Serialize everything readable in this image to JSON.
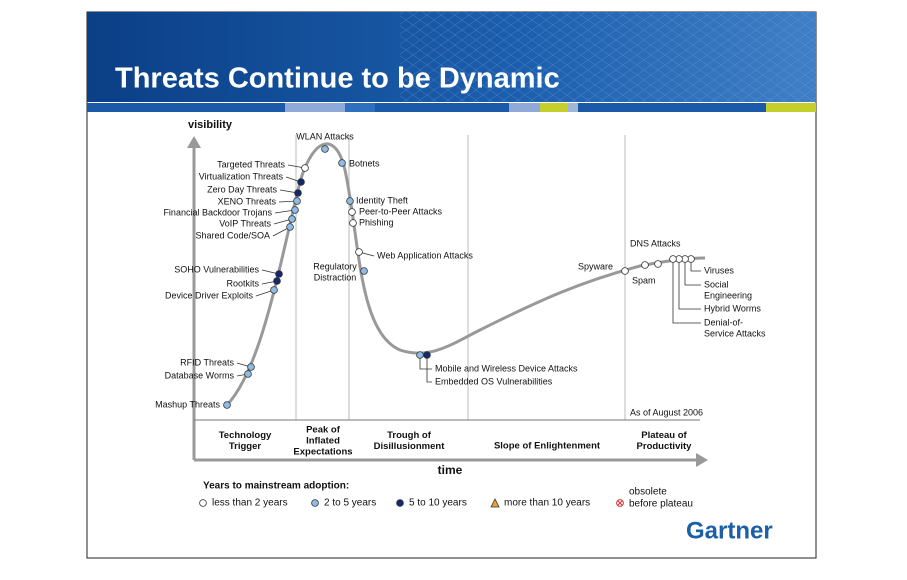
{
  "header": {
    "title": "Threats Continue to be Dynamic"
  },
  "axes": {
    "y_label": "visibility",
    "x_label": "time"
  },
  "technologies": [
    {
      "label": "Targeted Threats"
    },
    {
      "label": "Virtualization Threats"
    },
    {
      "label": "Zero Day Threats"
    },
    {
      "label": "XENO Threats"
    },
    {
      "label": "Financial Backdoor Trojans"
    },
    {
      "label": "VoIP Threats"
    },
    {
      "label": "Shared Code/SOA"
    },
    {
      "label": "SOHO Vulnerabilities"
    },
    {
      "label": "Rootkits"
    },
    {
      "label": "Device Driver Exploits"
    },
    {
      "label": "RFID Threats"
    },
    {
      "label": "Database Worms"
    },
    {
      "label": "Mashup Threats"
    },
    {
      "label": "WLAN Attacks"
    },
    {
      "label": "Botnets"
    },
    {
      "label": "Identity Theft"
    },
    {
      "label": "Peer-to-Peer Attacks"
    },
    {
      "label": "Phishing"
    },
    {
      "label": "Web Application Attacks"
    },
    {
      "label": [
        "Regulatory",
        "Distraction"
      ]
    },
    {
      "label": "Mobile and Wireless Device Attacks"
    },
    {
      "label": "Embedded OS Vulnerabilities"
    },
    {
      "label": "Spyware"
    },
    {
      "label": "DNS Attacks"
    },
    {
      "label": "Spam"
    },
    {
      "label": "Viruses"
    },
    {
      "label": [
        "Social",
        "Engineering"
      ]
    },
    {
      "label": "Hybrid Worms"
    },
    {
      "label": [
        "Denial-of-",
        "Service Attacks"
      ]
    }
  ],
  "phases": [
    [
      "Technology",
      "Trigger"
    ],
    [
      "Peak of",
      "Inflated",
      "Expectations"
    ],
    [
      "Trough of",
      "Disillusionment"
    ],
    [
      "Slope of Enlightenment"
    ],
    [
      "Plateau of",
      "Productivity"
    ]
  ],
  "note": "As of August 2006",
  "legend": {
    "title": "Years to mainstream adoption:",
    "items": [
      [
        "less than 2 years"
      ],
      [
        "2 to 5 years"
      ],
      [
        "5 to 10 years"
      ],
      [
        "more than 10 years"
      ],
      [
        "obsolete",
        "before plateau"
      ]
    ]
  },
  "logo": "Gartner"
}
